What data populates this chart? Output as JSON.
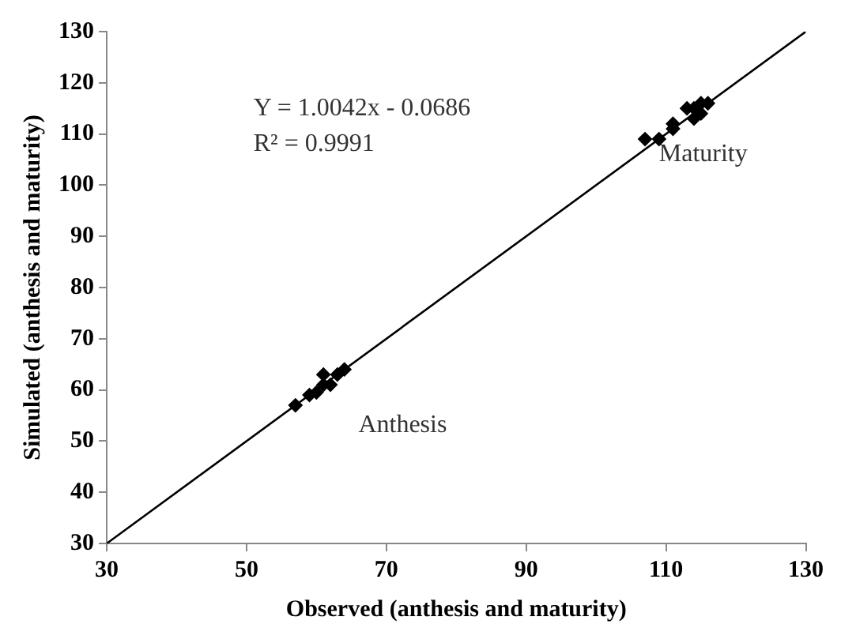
{
  "chart_data": {
    "type": "scatter",
    "xlabel": "Observed (anthesis and maturity)",
    "ylabel": "Simulated (anthesis and maturity)",
    "xlim": [
      30,
      130
    ],
    "xticks": [
      30,
      50,
      70,
      90,
      110,
      130
    ],
    "ylim": [
      30,
      130
    ],
    "yticks": [
      30,
      40,
      50,
      60,
      70,
      80,
      90,
      100,
      110,
      120,
      130
    ],
    "grid": false,
    "legend": false,
    "marker": "diamond",
    "series": [
      {
        "color": "#000000",
        "x": [
          57,
          59,
          60,
          61,
          61,
          62,
          63,
          64,
          107,
          109,
          111,
          111,
          113,
          114,
          114,
          115,
          115,
          116
        ],
        "values": [
          57,
          59,
          59.5,
          61,
          63,
          61,
          63,
          64,
          109,
          109,
          112,
          111,
          115,
          115,
          113,
          114,
          116,
          116
        ]
      },
      {
        "type": "line",
        "color": "#000000",
        "marker": "none",
        "x": [
          30,
          130
        ],
        "values": [
          30,
          130
        ]
      }
    ],
    "annotations": [
      "Y = 1.0042x - 0.0686",
      "R² = 0.9991",
      "Anthesis",
      "Maturity"
    ]
  }
}
